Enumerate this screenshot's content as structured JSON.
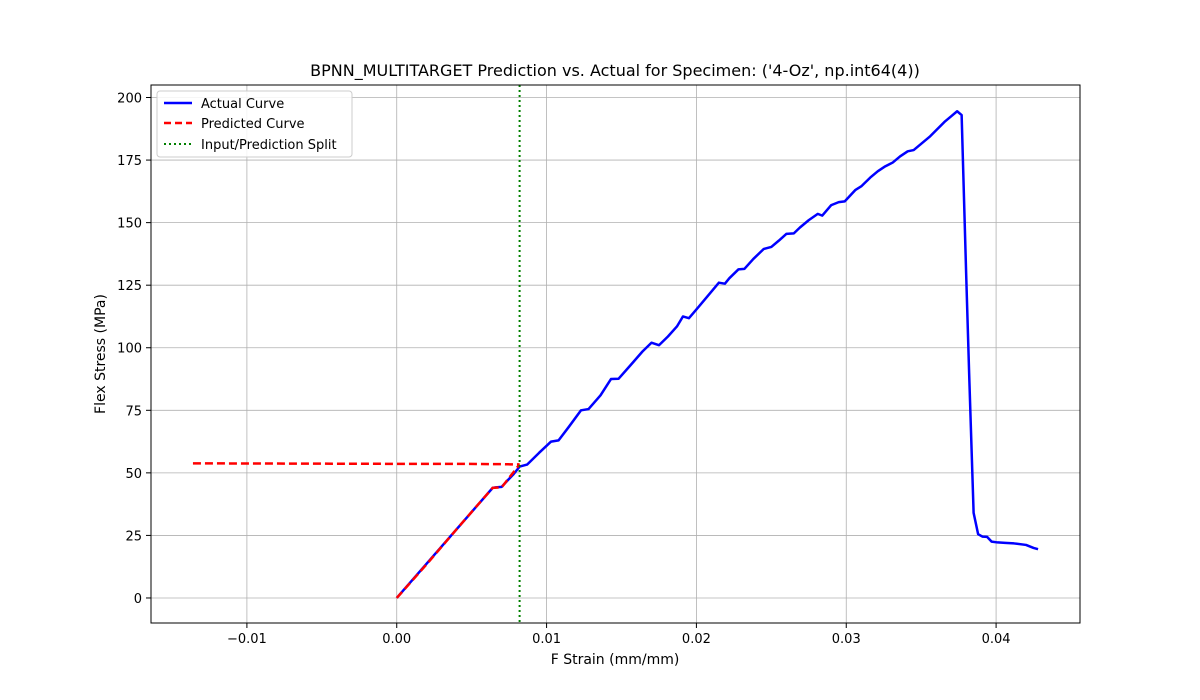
{
  "chart_data": {
    "type": "line",
    "title": "BPNN_MULTITARGET Prediction vs. Actual for Specimen: ('4-Oz', np.int64(4))",
    "xlabel": "F Strain (mm/mm)",
    "ylabel": "Flex Stress (MPa)",
    "xlim": [
      -0.0164,
      0.0456
    ],
    "ylim": [
      -10,
      205
    ],
    "grid": true,
    "legend_position": "upper-left",
    "x_ticks": [
      {
        "value": -0.01,
        "label": "−0.01"
      },
      {
        "value": 0.0,
        "label": "0.00"
      },
      {
        "value": 0.01,
        "label": "0.01"
      },
      {
        "value": 0.02,
        "label": "0.02"
      },
      {
        "value": 0.03,
        "label": "0.03"
      },
      {
        "value": 0.04,
        "label": "0.04"
      }
    ],
    "y_ticks": [
      {
        "value": 0,
        "label": "0"
      },
      {
        "value": 25,
        "label": "25"
      },
      {
        "value": 50,
        "label": "50"
      },
      {
        "value": 75,
        "label": "75"
      },
      {
        "value": 100,
        "label": "100"
      },
      {
        "value": 125,
        "label": "125"
      },
      {
        "value": 150,
        "label": "150"
      },
      {
        "value": 175,
        "label": "175"
      },
      {
        "value": 200,
        "label": "200"
      }
    ],
    "series": [
      {
        "name": "Actual Curve",
        "color": "#0000ff",
        "style": "solid",
        "x": [
          0.0,
          0.0008,
          0.0016,
          0.0024,
          0.0032,
          0.004,
          0.0048,
          0.0056,
          0.0064,
          0.0066,
          0.007,
          0.0074,
          0.0078,
          0.0082,
          0.0087,
          0.0095,
          0.0103,
          0.0108,
          0.0115,
          0.0123,
          0.0128,
          0.0136,
          0.0143,
          0.0148,
          0.0156,
          0.0164,
          0.017,
          0.0175,
          0.0181,
          0.0187,
          0.0191,
          0.0195,
          0.0201,
          0.0208,
          0.0215,
          0.0219,
          0.0222,
          0.0228,
          0.0232,
          0.0238,
          0.0245,
          0.025,
          0.0255,
          0.026,
          0.0265,
          0.0269,
          0.0275,
          0.0281,
          0.0284,
          0.029,
          0.0295,
          0.0299,
          0.0306,
          0.031,
          0.0316,
          0.0321,
          0.0326,
          0.0331,
          0.0336,
          0.0341,
          0.0345,
          0.035,
          0.0356,
          0.0361,
          0.0366,
          0.037,
          0.0374,
          0.0377,
          0.038,
          0.0382,
          0.0385,
          0.0388,
          0.0391,
          0.0394,
          0.0397,
          0.0401,
          0.0406,
          0.0412,
          0.042,
          0.0425,
          0.0428
        ],
        "y": [
          0.0,
          5.5,
          11.0,
          16.5,
          22.0,
          27.5,
          33.0,
          38.5,
          44.0,
          44.2,
          44.4,
          47.0,
          49.5,
          52.5,
          53.3,
          58.0,
          62.5,
          63.0,
          68.5,
          75.0,
          75.5,
          81.0,
          87.5,
          87.6,
          93.0,
          98.5,
          102.0,
          101.0,
          104.5,
          108.5,
          112.5,
          111.8,
          116.0,
          121.0,
          126.0,
          125.6,
          127.8,
          131.3,
          131.5,
          135.5,
          139.5,
          140.3,
          142.8,
          145.5,
          145.7,
          148.0,
          151.0,
          153.5,
          152.8,
          157.0,
          158.2,
          158.5,
          163.0,
          164.5,
          168.0,
          170.5,
          172.5,
          174.0,
          176.5,
          178.5,
          179.0,
          181.5,
          184.5,
          187.5,
          190.5,
          192.5,
          194.5,
          193.0,
          130.0,
          90.0,
          34.0,
          25.5,
          24.5,
          24.4,
          22.5,
          22.2,
          22.0,
          21.8,
          21.2,
          20.0,
          19.5
        ]
      },
      {
        "name": "Predicted Curve",
        "color": "#ff0000",
        "style": "dashed",
        "x": [
          -0.0136,
          0.0,
          0.004,
          0.0064,
          0.007,
          0.0076,
          0.0082,
          0.0082
        ],
        "y": [
          53.8,
          53.6,
          53.6,
          53.5,
          53.5,
          53.4,
          53.4,
          53.4
        ],
        "prefix_x": [
          0.0,
          0.002,
          0.004,
          0.0064,
          0.007,
          0.0082
        ],
        "prefix_y": [
          0.0,
          13.5,
          27.5,
          44.0,
          44.2,
          53.4
        ]
      }
    ],
    "split_line": {
      "name": "Input/Prediction Split",
      "x": 0.0082,
      "color": "#008000",
      "style": "dotted"
    }
  }
}
